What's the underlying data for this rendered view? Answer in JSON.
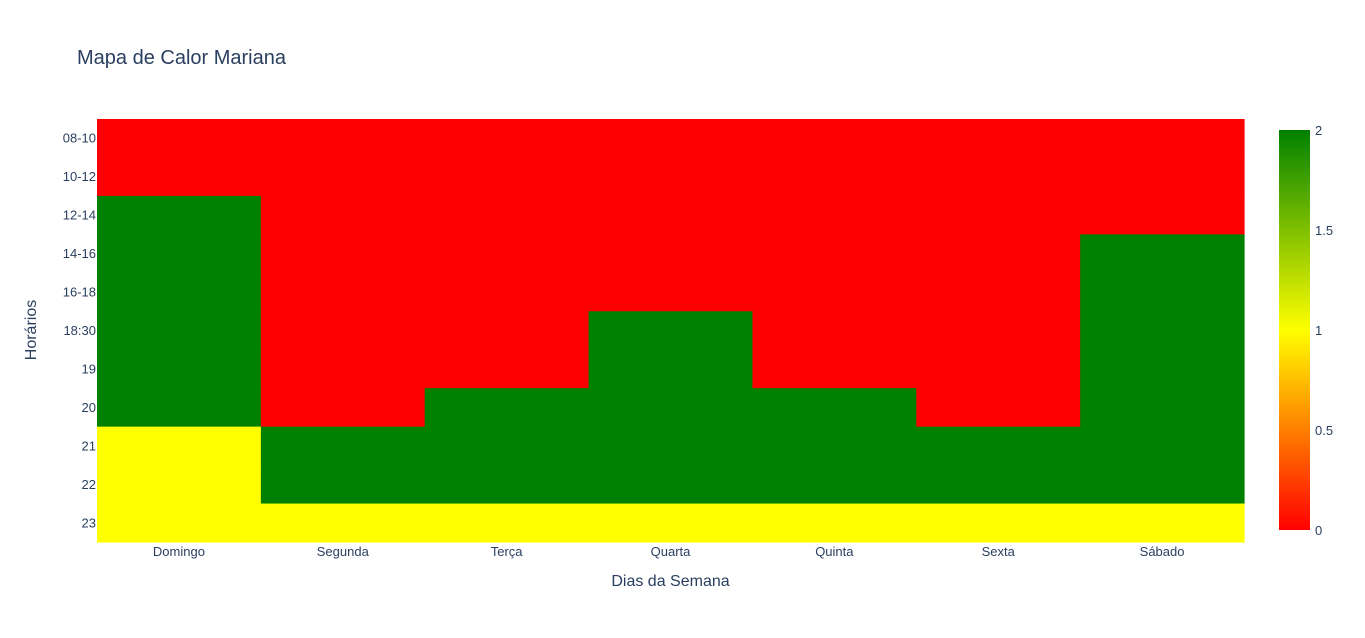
{
  "chart_data": {
    "type": "heatmap",
    "title": "Mapa de Calor Mariana",
    "xlabel": "Dias da Semana",
    "ylabel": "Horários",
    "x": [
      "Domingo",
      "Segunda",
      "Terça",
      "Quarta",
      "Quinta",
      "Sexta",
      "Sábado"
    ],
    "y": [
      "08-10",
      "10-12",
      "12-14",
      "14-16",
      "16-18",
      "18:30",
      "19",
      "20",
      "21",
      "22",
      "23"
    ],
    "z": [
      [
        0,
        0,
        0,
        0,
        0,
        0,
        0
      ],
      [
        0,
        0,
        0,
        0,
        0,
        0,
        0
      ],
      [
        2,
        0,
        0,
        0,
        0,
        0,
        0
      ],
      [
        2,
        0,
        0,
        0,
        0,
        0,
        2
      ],
      [
        2,
        0,
        0,
        0,
        0,
        0,
        2
      ],
      [
        2,
        0,
        0,
        2,
        0,
        0,
        2
      ],
      [
        2,
        0,
        0,
        2,
        0,
        0,
        2
      ],
      [
        2,
        0,
        2,
        2,
        2,
        0,
        2
      ],
      [
        1,
        2,
        2,
        2,
        2,
        2,
        2
      ],
      [
        1,
        2,
        2,
        2,
        2,
        2,
        2
      ],
      [
        1,
        1,
        1,
        1,
        1,
        1,
        1
      ]
    ],
    "zmin": 0,
    "zmax": 2,
    "colorscale": [
      [
        0,
        "#ff0000"
      ],
      [
        0.5,
        "#ffff00"
      ],
      [
        1,
        "#008000"
      ]
    ],
    "colorbar_ticks": [
      "0",
      "0.5",
      "1",
      "1.5",
      "2"
    ],
    "colorbar_tick_values": [
      0,
      0.5,
      1,
      1.5,
      2
    ],
    "grid": false,
    "colorbar_position": "right"
  }
}
